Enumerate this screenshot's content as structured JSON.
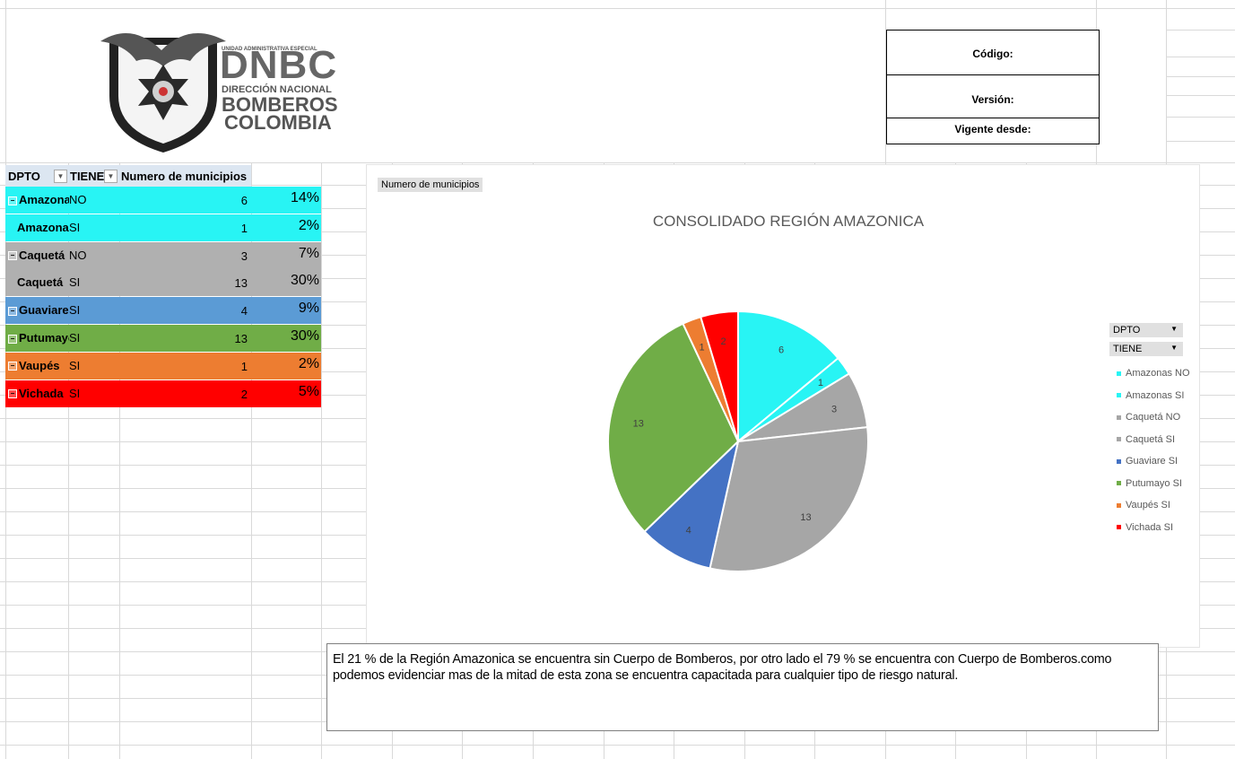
{
  "header": {
    "logo": {
      "line1": "UNIDAD ADMINISTRATIVA ESPECIAL",
      "line2": "DNBC",
      "line3": "DIRECCIÓN NACIONAL",
      "line4": "BOMBEROS",
      "line5": "COLOMBIA"
    },
    "info_box": {
      "codigo": "Código:",
      "version": "Versión:",
      "vigente": "Vigente desde:"
    }
  },
  "pivot": {
    "headers": {
      "dpto": "DPTO",
      "tiene": "TIENE",
      "num": "Numero de municipios"
    },
    "rows": [
      {
        "dep": "Amazonas",
        "tiene": "NO",
        "num": "6",
        "pct": "14%",
        "color": "#28f4f4",
        "expand": true
      },
      {
        "dep": "Amazonas",
        "tiene": "SI",
        "num": "1",
        "pct": "2%",
        "color": "#28f4f4",
        "expand": false
      },
      {
        "dep": "Caquetá",
        "tiene": "NO",
        "num": "3",
        "pct": "7%",
        "color": "#b0b0b0",
        "expand": true
      },
      {
        "dep": "Caquetá",
        "tiene": "SI",
        "num": "13",
        "pct": "30%",
        "color": "#b0b0b0",
        "expand": false
      },
      {
        "dep": "Guaviare",
        "tiene": "SI",
        "num": "4",
        "pct": "9%",
        "color": "#5b9bd5",
        "expand": true
      },
      {
        "dep": "Putumayo",
        "tiene": "SI",
        "num": "13",
        "pct": "30%",
        "color": "#70ad47",
        "expand": true
      },
      {
        "dep": "Vaupés",
        "tiene": "SI",
        "num": "1",
        "pct": "2%",
        "color": "#ed7d31",
        "expand": true
      },
      {
        "dep": "Vichada",
        "tiene": "SI",
        "num": "2",
        "pct": "5%",
        "color": "#ff0000",
        "expand": true
      }
    ]
  },
  "chart_field_button": "Numero de municipios",
  "chart_legend_fields": {
    "dpto": "DPTO",
    "tiene": "TIENE"
  },
  "chart_data": {
    "type": "pie",
    "title": "CONSOLIDADO REGIÓN AMAZONICA",
    "categories": [
      "Amazonas NO",
      "Amazonas SI",
      "Caquetá NO",
      "Caquetá SI",
      "Guaviare SI",
      "Putumayo SI",
      "Vaupés SI",
      "Vichada SI"
    ],
    "values": [
      6,
      1,
      3,
      13,
      4,
      13,
      1,
      2
    ],
    "colors": [
      "#28f4f4",
      "#28f4f4",
      "#a6a6a6",
      "#a6a6a6",
      "#4472c4",
      "#70ad47",
      "#ed7d31",
      "#ff0000"
    ],
    "legend_position": "right"
  },
  "note": "El 21 % de la Región Amazonica se encuentra  sin Cuerpo de Bomberos, por otro lado el 79 % se encuentra  con Cuerpo de Bomberos.como podemos evidenciar mas de la mitad de esta zona se encuentra  capacitada para cualquier tipo de riesgo natural."
}
